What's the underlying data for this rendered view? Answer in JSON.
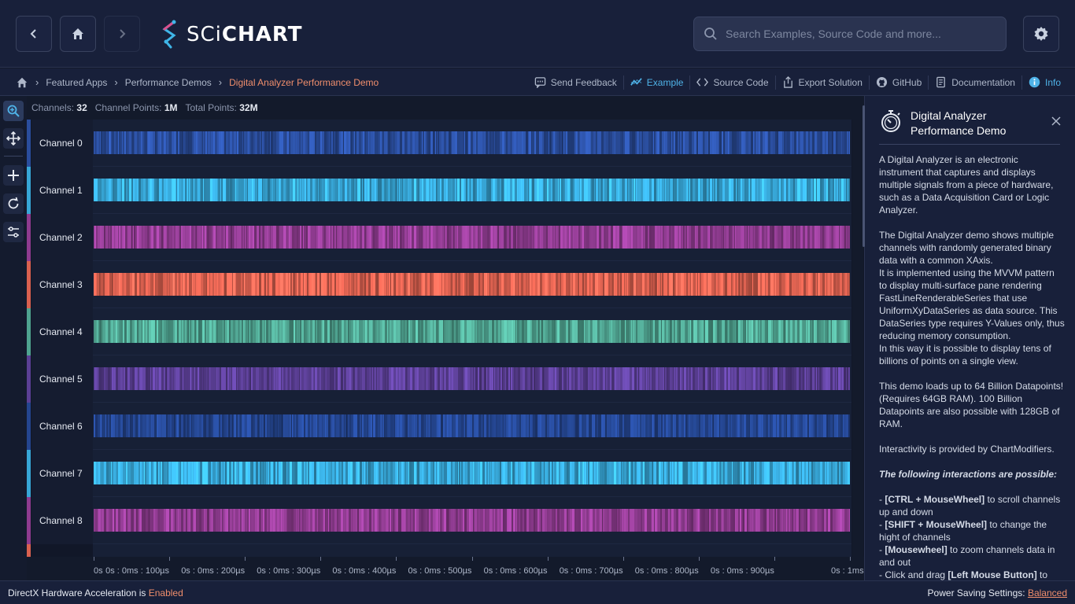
{
  "header": {
    "logo_text_light": "SCi",
    "logo_text_bold": "CHART",
    "search_placeholder": "Search Examples, Source Code and more..."
  },
  "breadcrumb": {
    "items": [
      "Featured Apps",
      "Performance Demos"
    ],
    "current": "Digital Analyzer Performance Demo"
  },
  "toolbar": {
    "send_feedback": "Send Feedback",
    "example": "Example",
    "source_code": "Source Code",
    "export_solution": "Export Solution",
    "github": "GitHub",
    "documentation": "Documentation",
    "info": "Info"
  },
  "stats": {
    "channels_label": "Channels:",
    "channels_value": "32",
    "channel_points_label": "Channel Points:",
    "channel_points_value": "1M",
    "total_points_label": "Total Points:",
    "total_points_value": "32M"
  },
  "chart_data": {
    "type": "line",
    "series": [
      {
        "name": "Channel 0",
        "color": "#2a4d9c"
      },
      {
        "name": "Channel 1",
        "color": "#37a6d6"
      },
      {
        "name": "Channel 2",
        "color": "#8e3b8f"
      },
      {
        "name": "Channel 3",
        "color": "#d9604f"
      },
      {
        "name": "Channel 4",
        "color": "#4fa390"
      },
      {
        "name": "Channel 5",
        "color": "#5b3f95"
      },
      {
        "name": "Channel 6",
        "color": "#24458f"
      },
      {
        "name": "Channel 7",
        "color": "#37a6d6"
      },
      {
        "name": "Channel 8",
        "color": "#8e3b8f"
      }
    ],
    "x_tick_labels": [
      "0s",
      "0s : 0ms : 100µs",
      "0s : 0ms : 200µs",
      "0s : 0ms : 300µs",
      "0s : 0ms : 400µs",
      "0s : 0ms : 500µs",
      "0s : 0ms : 600µs",
      "0s : 0ms : 700µs",
      "0s : 0ms : 800µs",
      "0s : 0ms : 900µs",
      "0s : 1ms"
    ],
    "xlim": [
      0,
      1
    ],
    "x_unit": "ms",
    "partial_next_channel_color": "#d9604f"
  },
  "info": {
    "title": "Digital Analyzer Performance Demo",
    "p1": "A Digital Analyzer is an electronic instrument that captures and displays multiple signals from a piece of hardware, such as a Data Acquisition Card or Logic Analyzer.",
    "p2": "The Digital Analyzer demo shows multiple channels with randomly generated binary data with a common XAxis.",
    "p3": "It is implemented using the MVVM pattern to display multi-surface pane rendering FastLineRenderableSeries that use UniformXyDataSeries as data source. This DataSeries type requires Y-Values only, thus reducing memory consumption.",
    "p4": "In this way it is possible to display tens of billions of points on a single view.",
    "p5": "This demo loads up to 64 Billion Datapoints! (Requires 64GB RAM). 100 Billion Datapoints are also possible with 128GB of RAM.",
    "p6": "Interactivity is provided by ChartModifiers.",
    "p7": "The following interactions are possible:",
    "i1_key": "[CTRL + MouseWheel]",
    "i1_text": " to scroll channels up and down",
    "i2_key": "[SHIFT + MouseWheel]",
    "i2_text": " to change the hight of channels",
    "i3_key": "[Mousewheel]",
    "i3_text": " to zoom channels data in and out",
    "i4_pre": "- Click and drag ",
    "i4_key": "[Left Mouse Button]",
    "i4_text": " to"
  },
  "status": {
    "left_text": "DirectX Hardware Acceleration is ",
    "left_value": "Enabled",
    "right_text": "Power Saving Settings: ",
    "right_value": "Balanced"
  }
}
